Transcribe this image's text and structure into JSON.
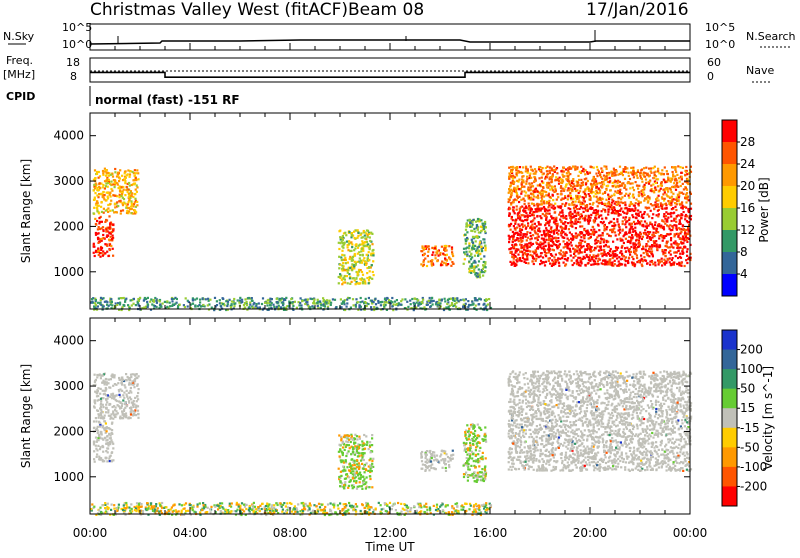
{
  "header": {
    "title": "Christmas Valley West (fitACF)",
    "beam": "Beam 08",
    "date": "17/Jan/2016"
  },
  "noise_panel": {
    "left_label": "N.Sky",
    "right_label": "N.Search",
    "left_ticks": [
      "10^5",
      "10^0"
    ],
    "right_ticks": [
      "10^5",
      "10^0"
    ]
  },
  "freq_panel": {
    "left_label_1": "Freq.",
    "left_label_2": "[MHz]",
    "left_ticks": [
      "18",
      "8"
    ],
    "right_label": "Nave",
    "right_ticks": [
      "60",
      "0"
    ]
  },
  "cpid": {
    "label": "CPID",
    "text": "normal (fast) -151 RF"
  },
  "power_panel": {
    "ylabel": "Slant Range [km]",
    "colorbar_label": "Power [dB]",
    "colorbar_ticks": [
      "28",
      "24",
      "20",
      "16",
      "12",
      "8",
      "4"
    ],
    "colorbar_colors": [
      "#ff0000",
      "#ff5500",
      "#ff9900",
      "#ffcc00",
      "#99cc33",
      "#339966",
      "#336699",
      "#0000ff"
    ]
  },
  "velocity_panel": {
    "ylabel": "Slant Range [km]",
    "colorbar_label": "Velocity [m s^-1]",
    "colorbar_ticks": [
      "200",
      "100",
      "50",
      "15",
      "-15",
      "-50",
      "-100",
      "-200"
    ],
    "colorbar_colors": [
      "#1a33cc",
      "#336699",
      "#339966",
      "#66cc33",
      "#c0c0b8",
      "#ffcc00",
      "#ff9900",
      "#ff5500",
      "#ff0000"
    ],
    "ground_scatter_color": "#c0c0b8"
  },
  "xaxis": {
    "label": "Time UT",
    "ticks": [
      "00:00",
      "04:00",
      "08:00",
      "12:00",
      "16:00",
      "20:00",
      "00:00"
    ]
  },
  "chart_data": {
    "type": "heatmap",
    "x_range_hours": [
      0,
      24
    ],
    "y_range_km": [
      180,
      4500
    ],
    "yticks": [
      1000,
      2000,
      3000,
      4000
    ],
    "frequency_mhz_segments": [
      {
        "start_hour": 0,
        "end_hour": 3,
        "value": 12
      },
      {
        "start_hour": 3,
        "end_hour": 15,
        "value": 10
      },
      {
        "start_hour": 15,
        "end_hour": 24,
        "value": 12
      }
    ],
    "scatter_regions": [
      {
        "t0": 0.1,
        "t1": 0.9,
        "r0": 1350,
        "r1": 2250,
        "power": 26,
        "velocity": "ground"
      },
      {
        "t0": 0.1,
        "t1": 1.9,
        "r0": 2300,
        "r1": 3300,
        "power": 18,
        "velocity": "ground"
      },
      {
        "t0": 9.9,
        "t1": 11.3,
        "r0": 750,
        "r1": 1950,
        "power": 14,
        "velocity": "positive"
      },
      {
        "t0": 13.2,
        "t1": 14.5,
        "r0": 1150,
        "r1": 1600,
        "power": 22,
        "velocity": "ground"
      },
      {
        "t0": 14.9,
        "t1": 15.8,
        "r0": 900,
        "r1": 2200,
        "power": 10,
        "velocity": "positive"
      },
      {
        "t0": 16.7,
        "t1": 24,
        "r0": 1150,
        "r1": 2500,
        "power": 28,
        "velocity": "ground"
      },
      {
        "t0": 16.7,
        "t1": 24,
        "r0": 2500,
        "r1": 3350,
        "power": 22,
        "velocity": "ground"
      },
      {
        "t0": 0,
        "t1": 16,
        "r0": 180,
        "r1": 450,
        "power": 8,
        "velocity": "mixed"
      }
    ]
  }
}
